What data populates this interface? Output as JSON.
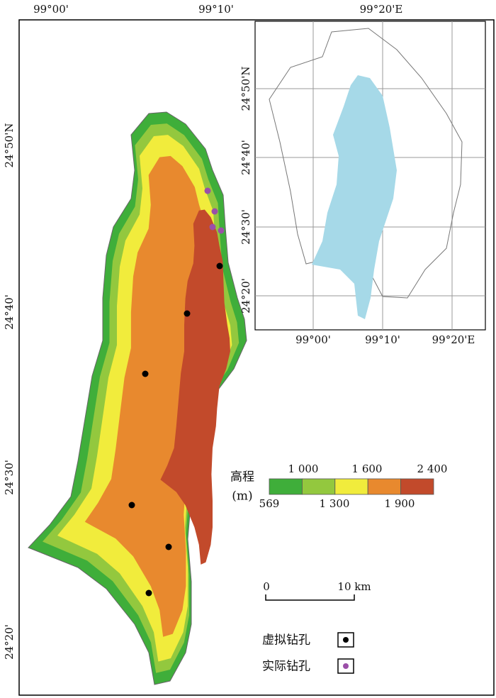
{
  "main_map": {
    "top_labels": [
      "99°00'",
      "99°10'",
      "99°20'E"
    ],
    "left_labels": [
      "24°50'N",
      "24°40'",
      "24°30'",
      "24°20'"
    ]
  },
  "inset_map": {
    "bottom_labels": [
      "99°00'",
      "99°10'",
      "99°20'E"
    ],
    "left_labels": [
      "24°50'N",
      "24°40'",
      "24°30'",
      "24°20'"
    ]
  },
  "elevation_legend": {
    "title": "高程",
    "unit": "(m)",
    "upper_labels": [
      "1 000",
      "1 600",
      "2 400"
    ],
    "lower_labels": [
      "569",
      "1 300",
      "1 900"
    ],
    "colors": [
      "#3fae3a",
      "#93c83e",
      "#f1ec3c",
      "#e8892e",
      "#c24a2b"
    ]
  },
  "scale_bar": {
    "start": "0",
    "end": "10 km"
  },
  "borehole_legend": {
    "items": [
      "虚拟钻孔",
      "实际钻孔"
    ]
  }
}
